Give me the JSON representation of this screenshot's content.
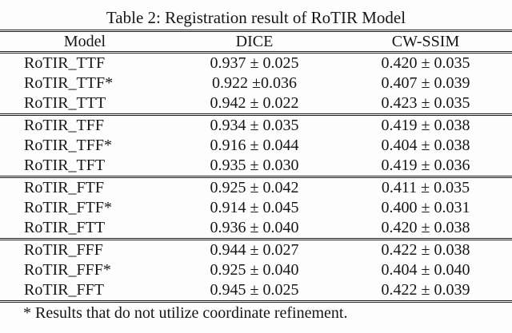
{
  "title": "Table 2: Registration result of RoTIR Model",
  "table": {
    "headers": [
      "Model",
      "DICE",
      "CW-SSIM"
    ],
    "groups": [
      {
        "rows": [
          {
            "model": "RoTIR_TTF",
            "dice": "0.937 ± 0.025",
            "cwssim": "0.420 ± 0.035"
          },
          {
            "model": "RoTIR_TTF*",
            "dice": "0.922 ±0.036",
            "cwssim": "0.407 ± 0.039"
          },
          {
            "model": "RoTIR_TTT",
            "dice": "0.942 ± 0.022",
            "cwssim": "0.423 ± 0.035"
          }
        ]
      },
      {
        "rows": [
          {
            "model": "RoTIR_TFF",
            "dice": "0.934 ± 0.035",
            "cwssim": "0.419 ± 0.038"
          },
          {
            "model": "RoTIR_TFF*",
            "dice": "0.916 ± 0.044",
            "cwssim": "0.404 ± 0.038"
          },
          {
            "model": "RoTIR_TFT",
            "dice": "0.935 ± 0.030",
            "cwssim": "0.419 ± 0.036"
          }
        ]
      },
      {
        "rows": [
          {
            "model": "RoTIR_FTF",
            "dice": "0.925 ± 0.042",
            "cwssim": "0.411 ± 0.035"
          },
          {
            "model": "RoTIR_FTF*",
            "dice": "0.914 ± 0.045",
            "cwssim": "0.400 ± 0.031"
          },
          {
            "model": "RoTIR_FTT",
            "dice": "0.936 ± 0.040",
            "cwssim": "0.420 ± 0.038"
          }
        ]
      },
      {
        "rows": [
          {
            "model": "RoTIR_FFF",
            "dice": "0.944 ± 0.027",
            "cwssim": "0.422 ± 0.038"
          },
          {
            "model": "RoTIR_FFF*",
            "dice": "0.925 ± 0.040",
            "cwssim": "0.404 ± 0.040"
          },
          {
            "model": "RoTIR_FFT",
            "dice": "0.945 ± 0.025",
            "cwssim": "0.422 ± 0.039"
          }
        ]
      }
    ]
  },
  "footnote": "* Results that do not utilize coordinate refinement.",
  "colors": {
    "background": "#fdfdfd",
    "text": "#161616",
    "rule": "#1c1c1c"
  }
}
